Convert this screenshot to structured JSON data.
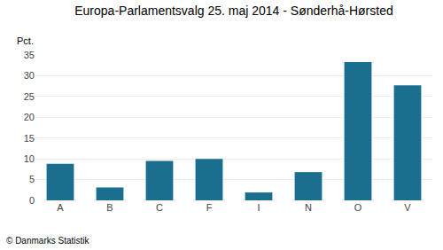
{
  "chart_data": {
    "type": "bar",
    "title": "Europa-Parlamentsvalg 25. maj 2014 - Sønderhå-Hørsted",
    "ylabel": "Pct.",
    "footer": "© Danmarks Statistik",
    "categories": [
      "A",
      "B",
      "C",
      "F",
      "I",
      "N",
      "O",
      "V"
    ],
    "values": [
      8.8,
      3.1,
      9.5,
      10.0,
      1.9,
      6.8,
      33.3,
      27.7
    ],
    "color": "#1a6e8e",
    "ylim": [
      0,
      35
    ],
    "yticks": [
      0,
      5,
      10,
      15,
      20,
      25,
      30,
      35
    ],
    "grid": true
  }
}
